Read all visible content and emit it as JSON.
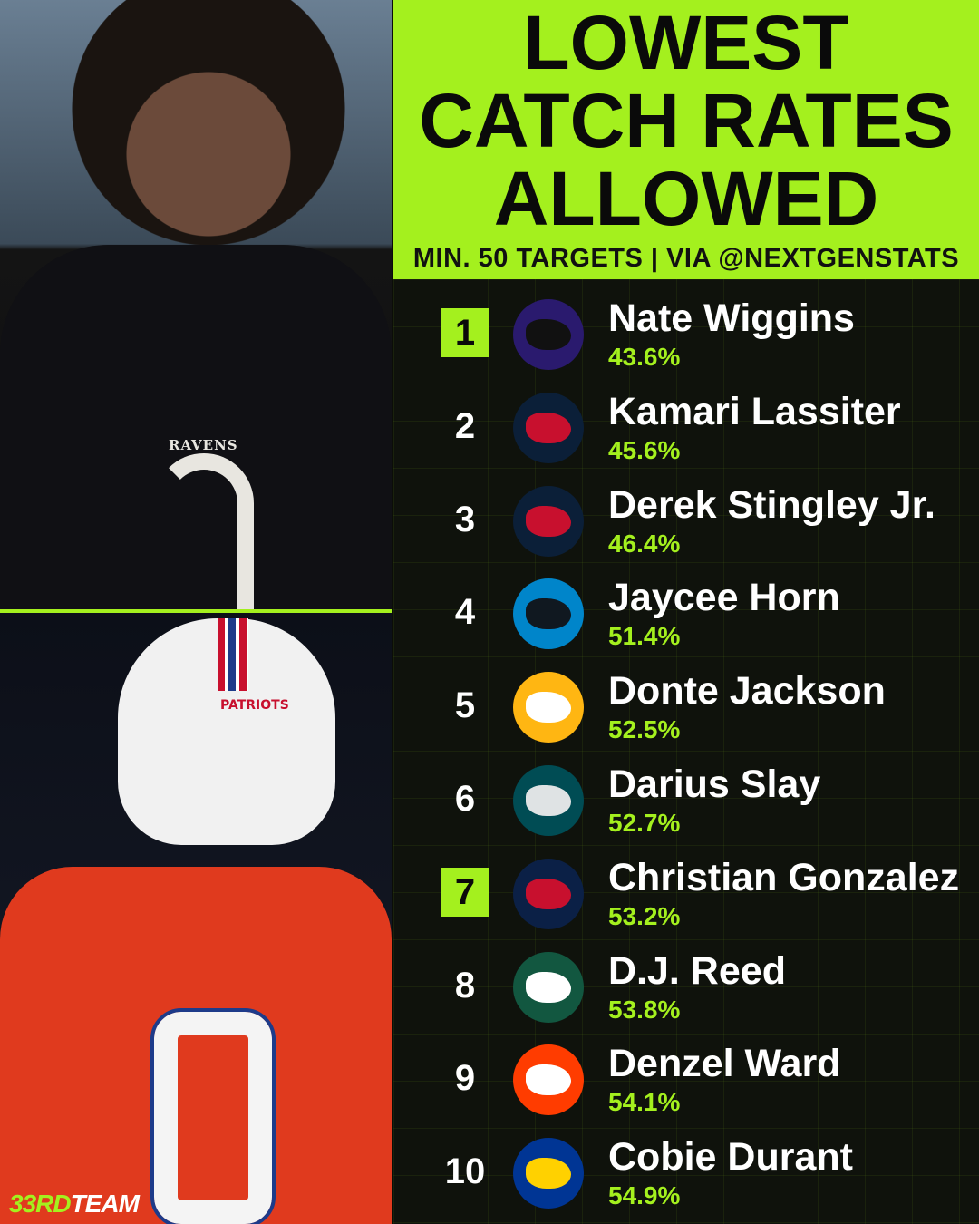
{
  "header": {
    "title_lines": [
      "LOWEST",
      "CATCH RATES",
      "ALLOWED"
    ],
    "subtitle": "MIN. 50 TARGETS | VIA @NEXTGENSTATS"
  },
  "photos": {
    "top_team": "RAVENS",
    "bottom_team": "PATRIOTS"
  },
  "brand": {
    "part1": "33RD",
    "part2": "TEAM"
  },
  "colors": {
    "accent": "#a4f01e",
    "background": "#0f120c"
  },
  "rows": [
    {
      "rank": "1",
      "name": "Nate Wiggins",
      "rate": "43.6%",
      "team": "ravens-logo",
      "logo_bg": "#2a1a6e",
      "logo_fg": "#111",
      "highlight": true
    },
    {
      "rank": "2",
      "name": "Kamari Lassiter",
      "rate": "45.6%",
      "team": "texans-logo",
      "logo_bg": "#0b1f38",
      "logo_fg": "#c8102e",
      "highlight": false
    },
    {
      "rank": "3",
      "name": "Derek Stingley Jr.",
      "rate": "46.4%",
      "team": "texans-logo",
      "logo_bg": "#0b1f38",
      "logo_fg": "#c8102e",
      "highlight": false
    },
    {
      "rank": "4",
      "name": "Jaycee Horn",
      "rate": "51.4%",
      "team": "panthers-logo",
      "logo_bg": "#0085ca",
      "logo_fg": "#101820",
      "highlight": false
    },
    {
      "rank": "5",
      "name": "Donte Jackson",
      "rate": "52.5%",
      "team": "steelers-logo",
      "logo_bg": "#ffb612",
      "logo_fg": "#ffffff",
      "highlight": false
    },
    {
      "rank": "6",
      "name": "Darius Slay",
      "rate": "52.7%",
      "team": "eagles-logo",
      "logo_bg": "#004c54",
      "logo_fg": "#dfe3e4",
      "highlight": false
    },
    {
      "rank": "7",
      "name": "Christian Gonzalez",
      "rate": "53.2%",
      "team": "patriots-logo",
      "logo_bg": "#0b2046",
      "logo_fg": "#c8102e",
      "highlight": true
    },
    {
      "rank": "8",
      "name": "D.J. Reed",
      "rate": "53.8%",
      "team": "jets-logo",
      "logo_bg": "#125740",
      "logo_fg": "#ffffff",
      "highlight": false
    },
    {
      "rank": "9",
      "name": "Denzel Ward",
      "rate": "54.1%",
      "team": "browns-logo",
      "logo_bg": "#ff3c00",
      "logo_fg": "#ffffff",
      "highlight": false
    },
    {
      "rank": "10",
      "name": "Cobie Durant",
      "rate": "54.9%",
      "team": "rams-logo",
      "logo_bg": "#003594",
      "logo_fg": "#ffd100",
      "highlight": false
    }
  ]
}
